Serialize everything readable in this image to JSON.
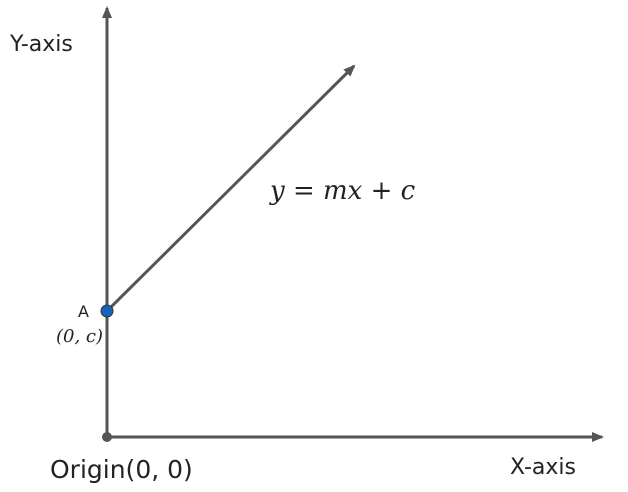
{
  "labels": {
    "y_axis": "Y-axis",
    "x_axis": "X-axis",
    "origin": "Origin(0, 0)",
    "point_name": "A",
    "point_coords": "(0, c)",
    "equation": "y = mx + c"
  },
  "colors": {
    "axis": "#555555",
    "point": "#1565c0",
    "origin_point": "#555555"
  }
}
